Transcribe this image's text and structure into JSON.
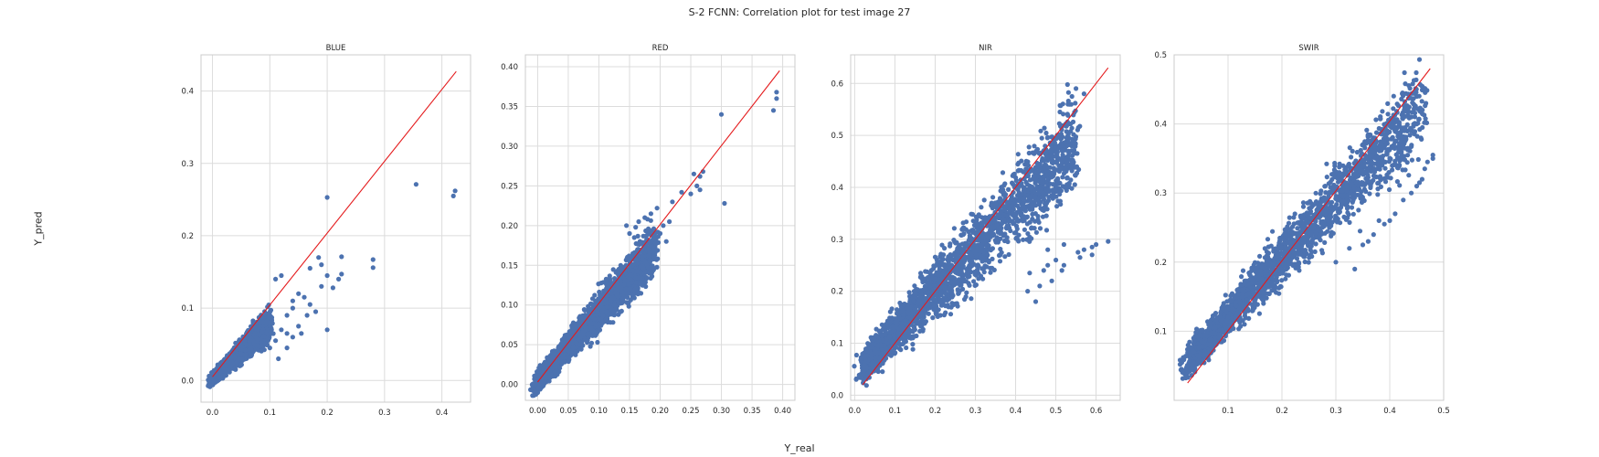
{
  "figure": {
    "title": "S-2 FCNN: Correlation plot for test image 27",
    "xlabel": "Y_real",
    "ylabel": "Y_pred"
  },
  "colors": {
    "points": "#4c72b0",
    "line": "#e41a1c",
    "grid": "#dcdcdc",
    "spine": "#cccccc"
  },
  "chart_data": [
    {
      "type": "scatter",
      "title": "BLUE",
      "xlim": [
        -0.02,
        0.45
      ],
      "ylim": [
        -0.03,
        0.45
      ],
      "xticks": [
        0.0,
        0.1,
        0.2,
        0.3,
        0.4
      ],
      "yticks": [
        0.0,
        0.1,
        0.2,
        0.3,
        0.4
      ],
      "tick_decimals": 1,
      "line": [
        [
          0.0,
          0.005
        ],
        [
          0.425,
          0.427
        ]
      ],
      "cloud": {
        "x_range": [
          0.0,
          0.1
        ],
        "slope": 0.75,
        "intercept": 0.003,
        "spread": 0.012,
        "x_extent_max": 0.13
      },
      "outliers": [
        [
          0.2,
          0.253
        ],
        [
          0.355,
          0.271
        ],
        [
          0.42,
          0.255
        ],
        [
          0.423,
          0.262
        ],
        [
          0.28,
          0.167
        ],
        [
          0.28,
          0.156
        ],
        [
          0.225,
          0.171
        ],
        [
          0.225,
          0.147
        ],
        [
          0.22,
          0.14
        ],
        [
          0.21,
          0.128
        ],
        [
          0.19,
          0.16
        ],
        [
          0.185,
          0.17
        ],
        [
          0.2,
          0.145
        ],
        [
          0.17,
          0.155
        ],
        [
          0.19,
          0.13
        ],
        [
          0.15,
          0.12
        ],
        [
          0.16,
          0.115
        ],
        [
          0.14,
          0.11
        ],
        [
          0.18,
          0.095
        ],
        [
          0.165,
          0.09
        ],
        [
          0.2,
          0.07
        ],
        [
          0.12,
          0.07
        ],
        [
          0.13,
          0.065
        ],
        [
          0.14,
          0.06
        ],
        [
          0.15,
          0.075
        ],
        [
          0.11,
          0.14
        ],
        [
          0.12,
          0.145
        ],
        [
          0.14,
          0.1
        ],
        [
          0.13,
          0.09
        ],
        [
          0.11,
          0.055
        ],
        [
          0.1,
          0.045
        ],
        [
          0.17,
          0.105
        ],
        [
          0.155,
          0.065
        ],
        [
          0.13,
          0.045
        ],
        [
          0.115,
          0.03
        ]
      ]
    },
    {
      "type": "scatter",
      "title": "RED",
      "xlim": [
        -0.02,
        0.42
      ],
      "ylim": [
        -0.02,
        0.415
      ],
      "xticks": [
        0.0,
        0.05,
        0.1,
        0.15,
        0.2,
        0.25,
        0.3,
        0.35,
        0.4
      ],
      "yticks": [
        0.0,
        0.05,
        0.1,
        0.15,
        0.2,
        0.25,
        0.3,
        0.35,
        0.4
      ],
      "tick_decimals": 2,
      "line": [
        [
          0.0,
          0.003
        ],
        [
          0.395,
          0.395
        ]
      ],
      "cloud": {
        "x_range": [
          0.0,
          0.19
        ],
        "slope": 0.88,
        "intercept": 0.004,
        "spread": 0.018,
        "x_extent_max": 0.2
      },
      "outliers": [
        [
          0.3,
          0.34
        ],
        [
          0.39,
          0.36
        ],
        [
          0.39,
          0.368
        ],
        [
          0.385,
          0.345
        ],
        [
          0.305,
          0.228
        ],
        [
          0.27,
          0.268
        ],
        [
          0.265,
          0.262
        ],
        [
          0.255,
          0.265
        ],
        [
          0.26,
          0.25
        ],
        [
          0.265,
          0.245
        ],
        [
          0.25,
          0.24
        ],
        [
          0.235,
          0.242
        ],
        [
          0.22,
          0.23
        ],
        [
          0.215,
          0.205
        ],
        [
          0.205,
          0.2
        ],
        [
          0.195,
          0.222
        ],
        [
          0.185,
          0.215
        ],
        [
          0.175,
          0.21
        ],
        [
          0.165,
          0.205
        ],
        [
          0.16,
          0.198
        ],
        [
          0.145,
          0.2
        ],
        [
          0.15,
          0.19
        ],
        [
          0.21,
          0.18
        ],
        [
          0.2,
          0.19
        ]
      ]
    },
    {
      "type": "scatter",
      "title": "NIR",
      "xlim": [
        -0.01,
        0.66
      ],
      "ylim": [
        -0.01,
        0.655
      ],
      "xticks": [
        0.0,
        0.1,
        0.2,
        0.3,
        0.4,
        0.5,
        0.6
      ],
      "yticks": [
        0.0,
        0.1,
        0.2,
        0.3,
        0.4,
        0.5,
        0.6
      ],
      "tick_decimals": 1,
      "line": [
        [
          0.02,
          0.02
        ],
        [
          0.63,
          0.63
        ]
      ],
      "cloud": {
        "x_range": [
          0.03,
          0.55
        ],
        "slope": 0.82,
        "intercept": 0.038,
        "spread": 0.05,
        "x_extent_max": 0.56
      },
      "outliers": [
        [
          0.63,
          0.296
        ],
        [
          0.6,
          0.29
        ],
        [
          0.59,
          0.285
        ],
        [
          0.59,
          0.27
        ],
        [
          0.57,
          0.28
        ],
        [
          0.56,
          0.265
        ],
        [
          0.555,
          0.275
        ],
        [
          0.52,
          0.25
        ],
        [
          0.515,
          0.24
        ],
        [
          0.5,
          0.26
        ],
        [
          0.48,
          0.25
        ],
        [
          0.47,
          0.24
        ],
        [
          0.45,
          0.18
        ],
        [
          0.46,
          0.21
        ],
        [
          0.49,
          0.22
        ],
        [
          0.435,
          0.235
        ],
        [
          0.52,
          0.29
        ],
        [
          0.48,
          0.28
        ],
        [
          0.43,
          0.2
        ],
        [
          0.55,
          0.59
        ],
        [
          0.54,
          0.575
        ],
        [
          0.57,
          0.58
        ],
        [
          0.53,
          0.56
        ],
        [
          0.51,
          0.545
        ]
      ]
    },
    {
      "type": "scatter",
      "title": "SWIR",
      "xlim": [
        0.0,
        0.5
      ],
      "ylim": [
        0.0,
        0.5
      ],
      "xticks": [
        0.1,
        0.2,
        0.3,
        0.4,
        0.5
      ],
      "yticks": [
        0.1,
        0.2,
        0.3,
        0.4,
        0.5
      ],
      "tick_decimals": 1,
      "line": [
        [
          0.025,
          0.025
        ],
        [
          0.475,
          0.48
        ]
      ],
      "cloud": {
        "x_range": [
          0.03,
          0.46
        ],
        "slope": 0.85,
        "intercept": 0.035,
        "spread": 0.033,
        "x_extent_max": 0.47
      },
      "outliers": [
        [
          0.48,
          0.355
        ],
        [
          0.48,
          0.35
        ],
        [
          0.47,
          0.345
        ],
        [
          0.465,
          0.335
        ],
        [
          0.46,
          0.32
        ],
        [
          0.455,
          0.315
        ],
        [
          0.45,
          0.31
        ],
        [
          0.44,
          0.3
        ],
        [
          0.425,
          0.29
        ],
        [
          0.41,
          0.27
        ],
        [
          0.4,
          0.26
        ],
        [
          0.39,
          0.255
        ],
        [
          0.38,
          0.26
        ],
        [
          0.37,
          0.24
        ],
        [
          0.36,
          0.23
        ],
        [
          0.35,
          0.225
        ],
        [
          0.345,
          0.245
        ],
        [
          0.335,
          0.19
        ],
        [
          0.325,
          0.22
        ],
        [
          0.3,
          0.2
        ],
        [
          0.44,
          0.41
        ],
        [
          0.45,
          0.4
        ],
        [
          0.44,
          0.39
        ],
        [
          0.43,
          0.42
        ]
      ]
    }
  ]
}
